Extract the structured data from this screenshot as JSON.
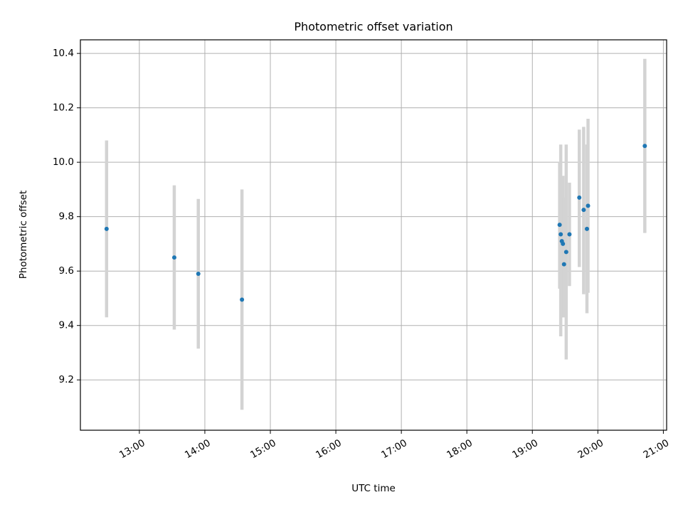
{
  "chart_data": {
    "type": "scatter",
    "title": "Photometric offset variation",
    "xlabel": "UTC time",
    "ylabel": "Photometric offset",
    "x_axis": "UTC time of day (HH:MM)",
    "xlim": [
      "12:06",
      "21:03"
    ],
    "ylim": [
      9.015,
      10.45
    ],
    "grid": true,
    "x_ticks": [
      "13:00",
      "14:00",
      "15:00",
      "16:00",
      "17:00",
      "18:00",
      "19:00",
      "20:00",
      "21:00"
    ],
    "y_ticks": [
      9.2,
      9.4,
      9.6,
      9.8,
      10.0,
      10.2,
      10.4
    ],
    "y_tick_labels": [
      "9.2",
      "9.4",
      "9.6",
      "9.8",
      "10.0",
      "10.2",
      "10.4"
    ],
    "point_color": "#1f77b4",
    "errorbar_color": "#d3d3d3",
    "points": [
      {
        "x": "12:30",
        "y": 9.755,
        "lo": 9.43,
        "hi": 10.08
      },
      {
        "x": "13:32",
        "y": 9.65,
        "lo": 9.385,
        "hi": 9.915
      },
      {
        "x": "13:54",
        "y": 9.59,
        "lo": 9.315,
        "hi": 9.865
      },
      {
        "x": "14:34",
        "y": 9.495,
        "lo": 9.09,
        "hi": 9.9
      },
      {
        "x": "19:25",
        "y": 9.77,
        "lo": 9.535,
        "hi": 10.0
      },
      {
        "x": "19:26",
        "y": 9.735,
        "lo": 9.36,
        "hi": 10.065
      },
      {
        "x": "19:27",
        "y": 9.71,
        "lo": 9.43,
        "hi": 9.89
      },
      {
        "x": "19:28",
        "y": 9.7,
        "lo": 9.43,
        "hi": 9.95
      },
      {
        "x": "19:29",
        "y": 9.625,
        "lo": 9.43,
        "hi": 9.87
      },
      {
        "x": "19:31",
        "y": 9.67,
        "lo": 9.275,
        "hi": 10.065
      },
      {
        "x": "19:34",
        "y": 9.735,
        "lo": 9.545,
        "hi": 9.925
      },
      {
        "x": "19:43",
        "y": 9.87,
        "lo": 9.615,
        "hi": 10.12
      },
      {
        "x": "19:47",
        "y": 9.825,
        "lo": 9.515,
        "hi": 10.13
      },
      {
        "x": "19:50",
        "y": 9.755,
        "lo": 9.445,
        "hi": 10.065
      },
      {
        "x": "19:51",
        "y": 9.84,
        "lo": 9.52,
        "hi": 10.16
      },
      {
        "x": "20:43",
        "y": 10.06,
        "lo": 9.74,
        "hi": 10.38
      }
    ]
  }
}
